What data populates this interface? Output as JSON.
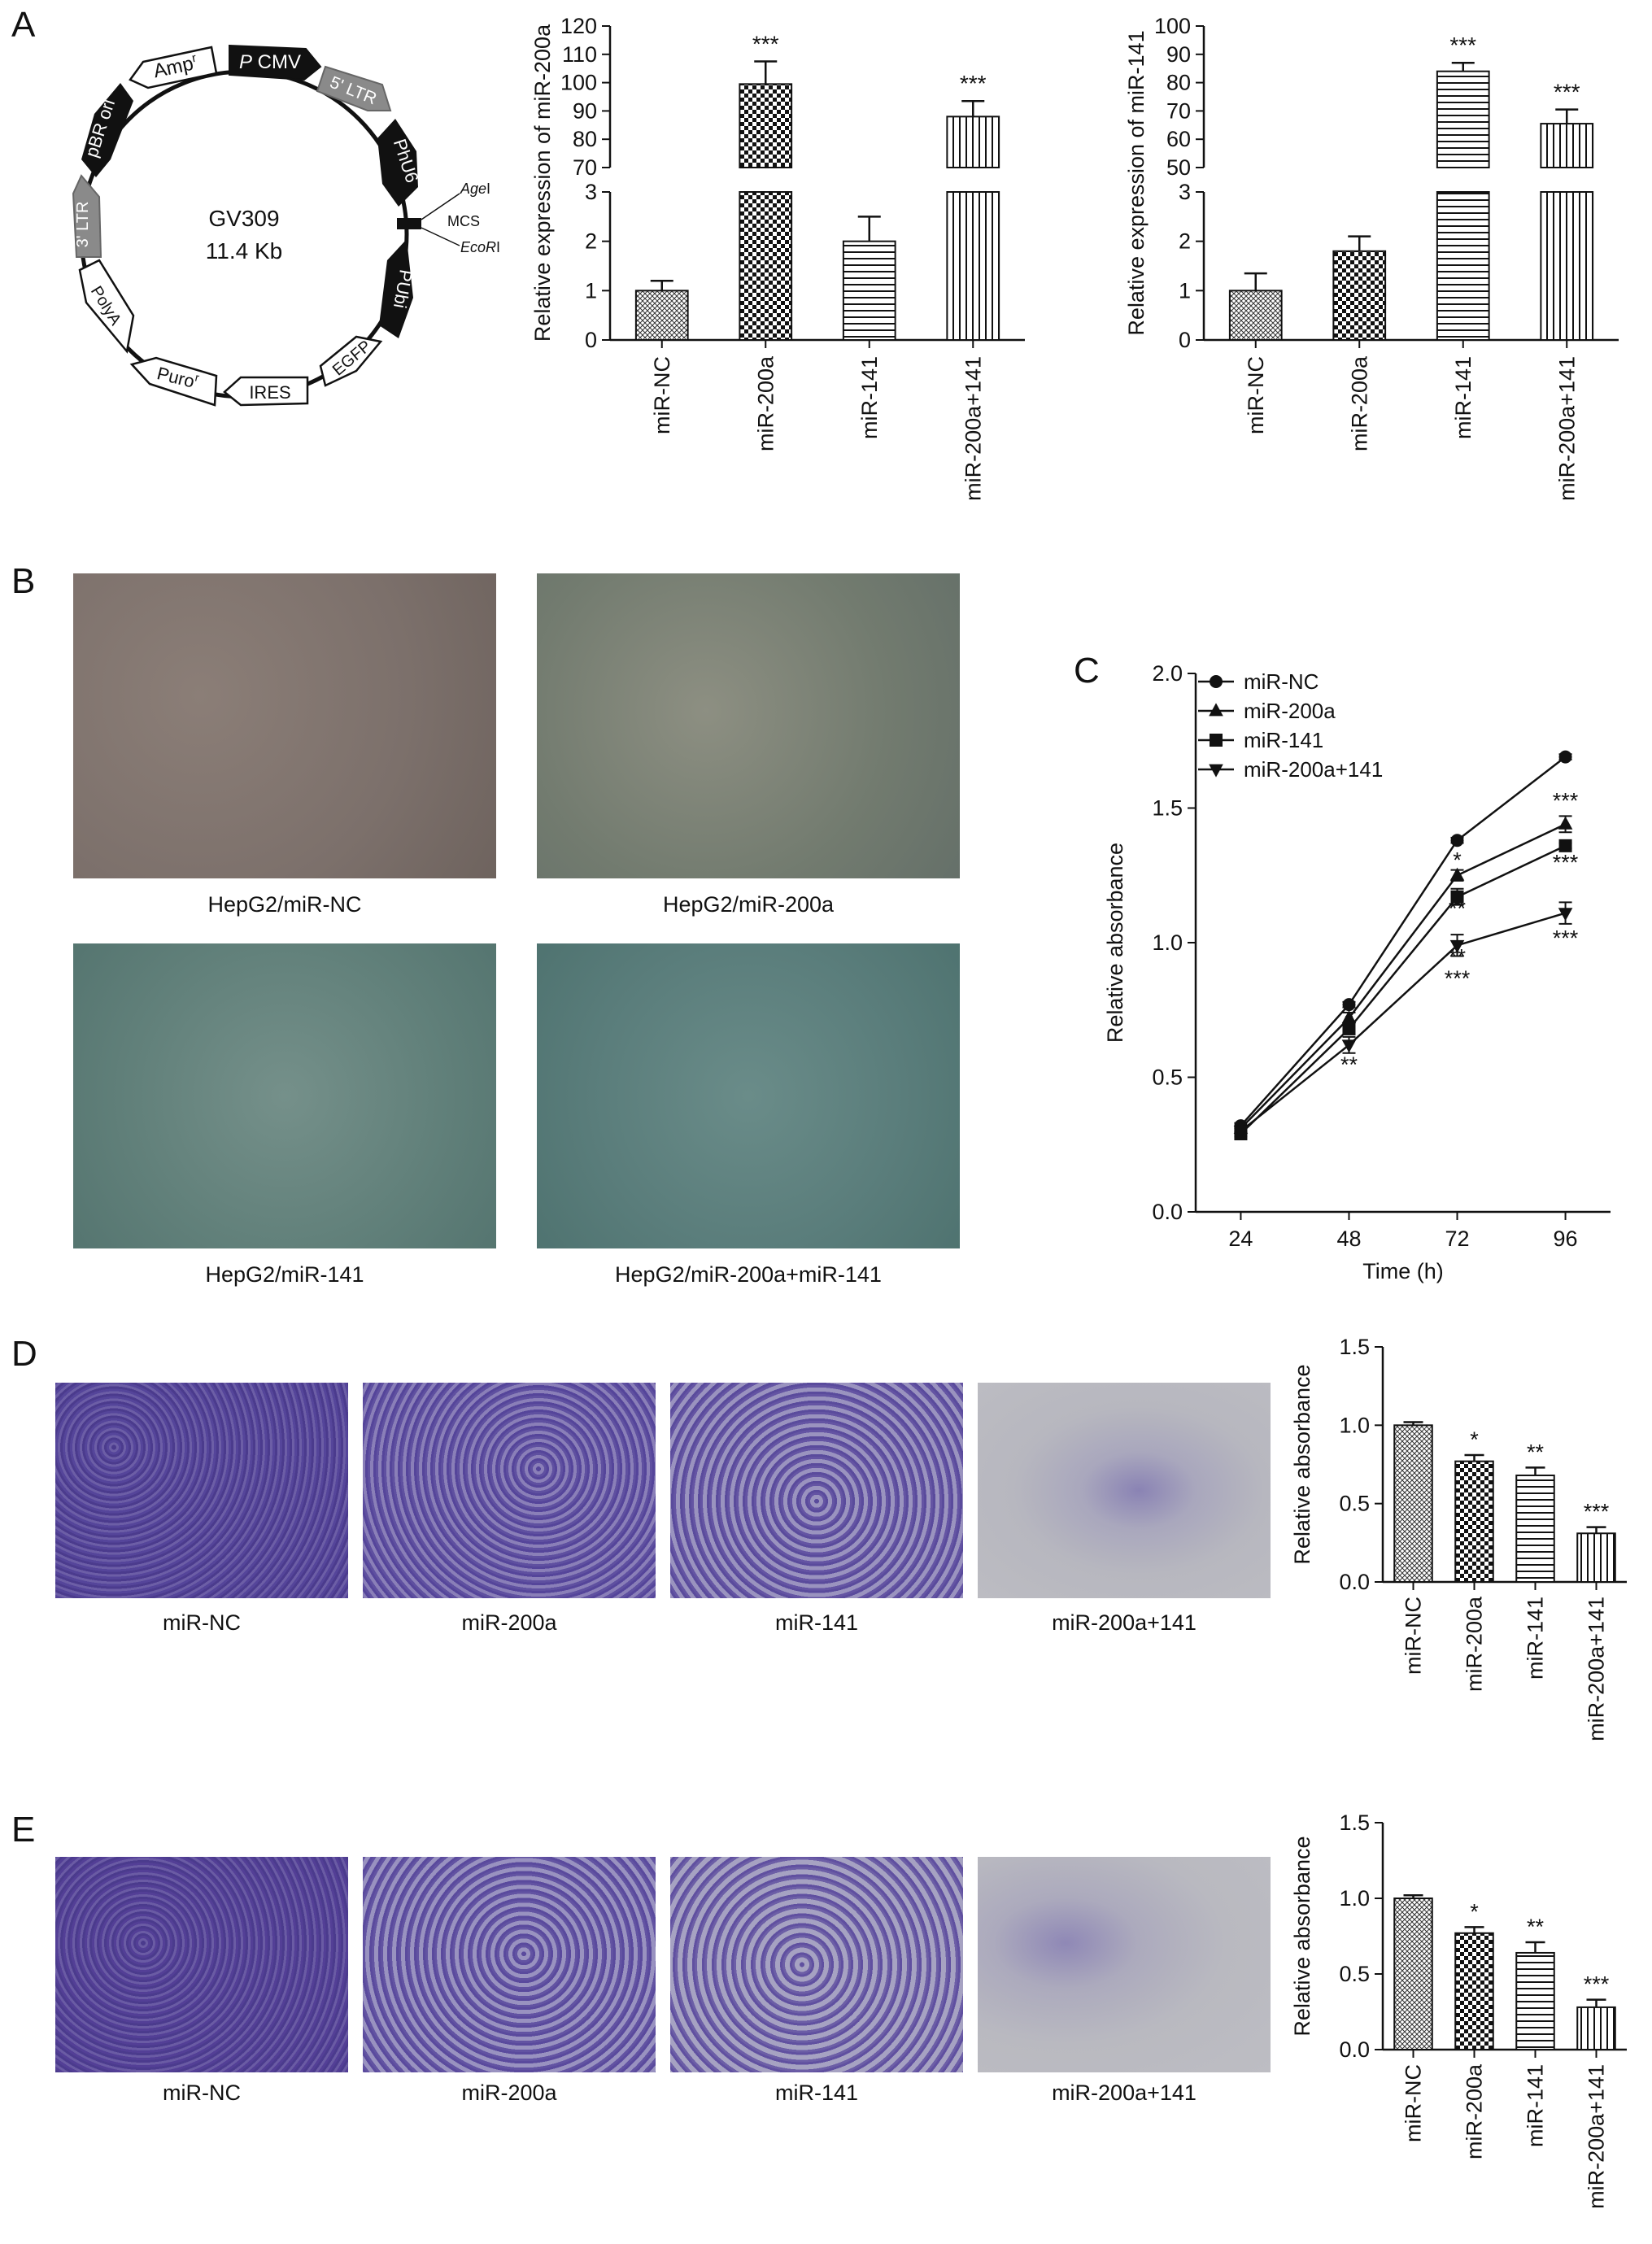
{
  "panels": {
    "A": "A",
    "B": "B",
    "C": "C",
    "D": "D",
    "E": "E"
  },
  "plasmid": {
    "name": "GV309",
    "size": "11.4 Kb",
    "features": {
      "amp": "Amp",
      "amp_sup": "r",
      "pcmv_p": "P",
      "pcmv": "CMV",
      "ltr5": "5' LTR",
      "phu6": "PhU6",
      "agei_it": "Age",
      "agei_suf": "I",
      "mcs": "MCS",
      "ecori_it": "EcoR",
      "ecori_suf": "I",
      "pubi": "PUbi",
      "egfp": "EGFP",
      "ires": "IRES",
      "puro": "Puro",
      "puro_sup": "r",
      "polya": "PolyA",
      "ltr3": "3' LTR",
      "pbr": "pBR ori"
    }
  },
  "panelB": {
    "captions": [
      "HepG2/miR-NC",
      "HepG2/miR-200a",
      "HepG2/miR-141",
      "HepG2/miR-200a+miR-141"
    ]
  },
  "panelD": {
    "captions": [
      "miR-NC",
      "miR-200a",
      "miR-141",
      "miR-200a+141"
    ]
  },
  "panelE": {
    "captions": [
      "miR-NC",
      "miR-200a",
      "miR-141",
      "miR-200a+141"
    ]
  },
  "colors": {
    "axis": "#111111",
    "bar_fill": "#ffffff",
    "stain": "#4a3a8c",
    "phase_bg": "#6f7f78"
  },
  "chart_data": [
    {
      "id": "A1",
      "type": "bar",
      "ylabel": "Relative expression of miR-200a",
      "categories": [
        "miR-NC",
        "miR-200a",
        "miR-141",
        "miR-200a+141"
      ],
      "values": [
        1.0,
        99.5,
        2.0,
        88.0
      ],
      "errors": [
        0.2,
        8.0,
        0.5,
        5.5
      ],
      "significance": [
        "",
        "***",
        "",
        "***"
      ],
      "broken_axis": true,
      "lower_ylim": [
        0,
        3
      ],
      "lower_ticks": [
        0,
        1,
        2,
        3
      ],
      "upper_ylim": [
        70,
        120
      ],
      "upper_ticks": [
        70,
        80,
        90,
        100,
        110,
        120
      ],
      "patterns": [
        "crosshatch",
        "checker",
        "hlines",
        "vlines"
      ]
    },
    {
      "id": "A2",
      "type": "bar",
      "ylabel": "Relative expression of miR-141",
      "categories": [
        "miR-NC",
        "miR-200a",
        "miR-141",
        "miR-200a+141"
      ],
      "values": [
        1.0,
        1.8,
        84.0,
        65.5
      ],
      "errors": [
        0.35,
        0.3,
        3.0,
        5.0
      ],
      "significance": [
        "",
        "",
        "***",
        "***"
      ],
      "broken_axis": true,
      "lower_ylim": [
        0,
        3
      ],
      "lower_ticks": [
        0,
        1,
        2,
        3
      ],
      "upper_ylim": [
        50,
        100
      ],
      "upper_ticks": [
        50,
        60,
        70,
        80,
        90,
        100
      ],
      "patterns": [
        "crosshatch",
        "checker",
        "hlines",
        "vlines"
      ]
    },
    {
      "id": "C",
      "type": "line",
      "xlabel": "Time (h)",
      "ylabel": "Relative absorbance",
      "x": [
        24,
        48,
        72,
        96
      ],
      "ylim": [
        0.0,
        2.0
      ],
      "yticks": [
        "0.0",
        "0.5",
        "1.0",
        "1.5",
        "2.0"
      ],
      "series": [
        {
          "name": "miR-NC",
          "marker": "circle",
          "values": [
            0.32,
            0.77,
            1.38,
            1.69
          ],
          "errors": [
            0.01,
            0.01,
            0.01,
            0.01
          ]
        },
        {
          "name": "miR-200a",
          "marker": "triangle-up",
          "values": [
            0.31,
            0.72,
            1.25,
            1.44
          ],
          "errors": [
            0.01,
            0.02,
            0.02,
            0.03
          ]
        },
        {
          "name": "miR-141",
          "marker": "square",
          "values": [
            0.29,
            0.68,
            1.17,
            1.36
          ],
          "errors": [
            0.01,
            0.02,
            0.03,
            0.01
          ]
        },
        {
          "name": "miR-200a+141",
          "marker": "triangle-down",
          "values": [
            0.3,
            0.62,
            0.99,
            1.11
          ],
          "errors": [
            0.01,
            0.03,
            0.04,
            0.04
          ]
        }
      ],
      "annotations": [
        {
          "x": 48,
          "y": 0.68,
          "text": "*"
        },
        {
          "x": 48,
          "y": 0.52,
          "text": "**"
        },
        {
          "x": 72,
          "y": 1.28,
          "text": "*"
        },
        {
          "x": 72,
          "y": 1.1,
          "text": "**"
        },
        {
          "x": 72,
          "y": 0.92,
          "text": "**"
        },
        {
          "x": 72,
          "y": 0.84,
          "text": "***"
        },
        {
          "x": 96,
          "y": 1.5,
          "text": "***"
        },
        {
          "x": 96,
          "y": 1.27,
          "text": "***"
        },
        {
          "x": 96,
          "y": 0.99,
          "text": "***"
        }
      ]
    },
    {
      "id": "D",
      "type": "bar",
      "ylabel": "Relative absorbance",
      "categories": [
        "miR-NC",
        "miR-200a",
        "miR-141",
        "miR-200a+141"
      ],
      "values": [
        1.0,
        0.77,
        0.68,
        0.31
      ],
      "errors": [
        0.02,
        0.04,
        0.05,
        0.04
      ],
      "significance": [
        "",
        "*",
        "**",
        "***"
      ],
      "ylim": [
        0.0,
        1.5
      ],
      "yticks": [
        "0.0",
        "0.5",
        "1.0",
        "1.5"
      ],
      "patterns": [
        "crosshatch",
        "checker",
        "hlines",
        "vlines"
      ]
    },
    {
      "id": "E",
      "type": "bar",
      "ylabel": "Relative absorbance",
      "categories": [
        "miR-NC",
        "miR-200a",
        "miR-141",
        "miR-200a+141"
      ],
      "values": [
        1.0,
        0.77,
        0.64,
        0.28
      ],
      "errors": [
        0.02,
        0.04,
        0.07,
        0.05
      ],
      "significance": [
        "",
        "*",
        "**",
        "***"
      ],
      "ylim": [
        0.0,
        1.5
      ],
      "yticks": [
        "0.0",
        "0.5",
        "1.0",
        "1.5"
      ],
      "patterns": [
        "crosshatch",
        "checker",
        "hlines",
        "vlines"
      ]
    }
  ]
}
